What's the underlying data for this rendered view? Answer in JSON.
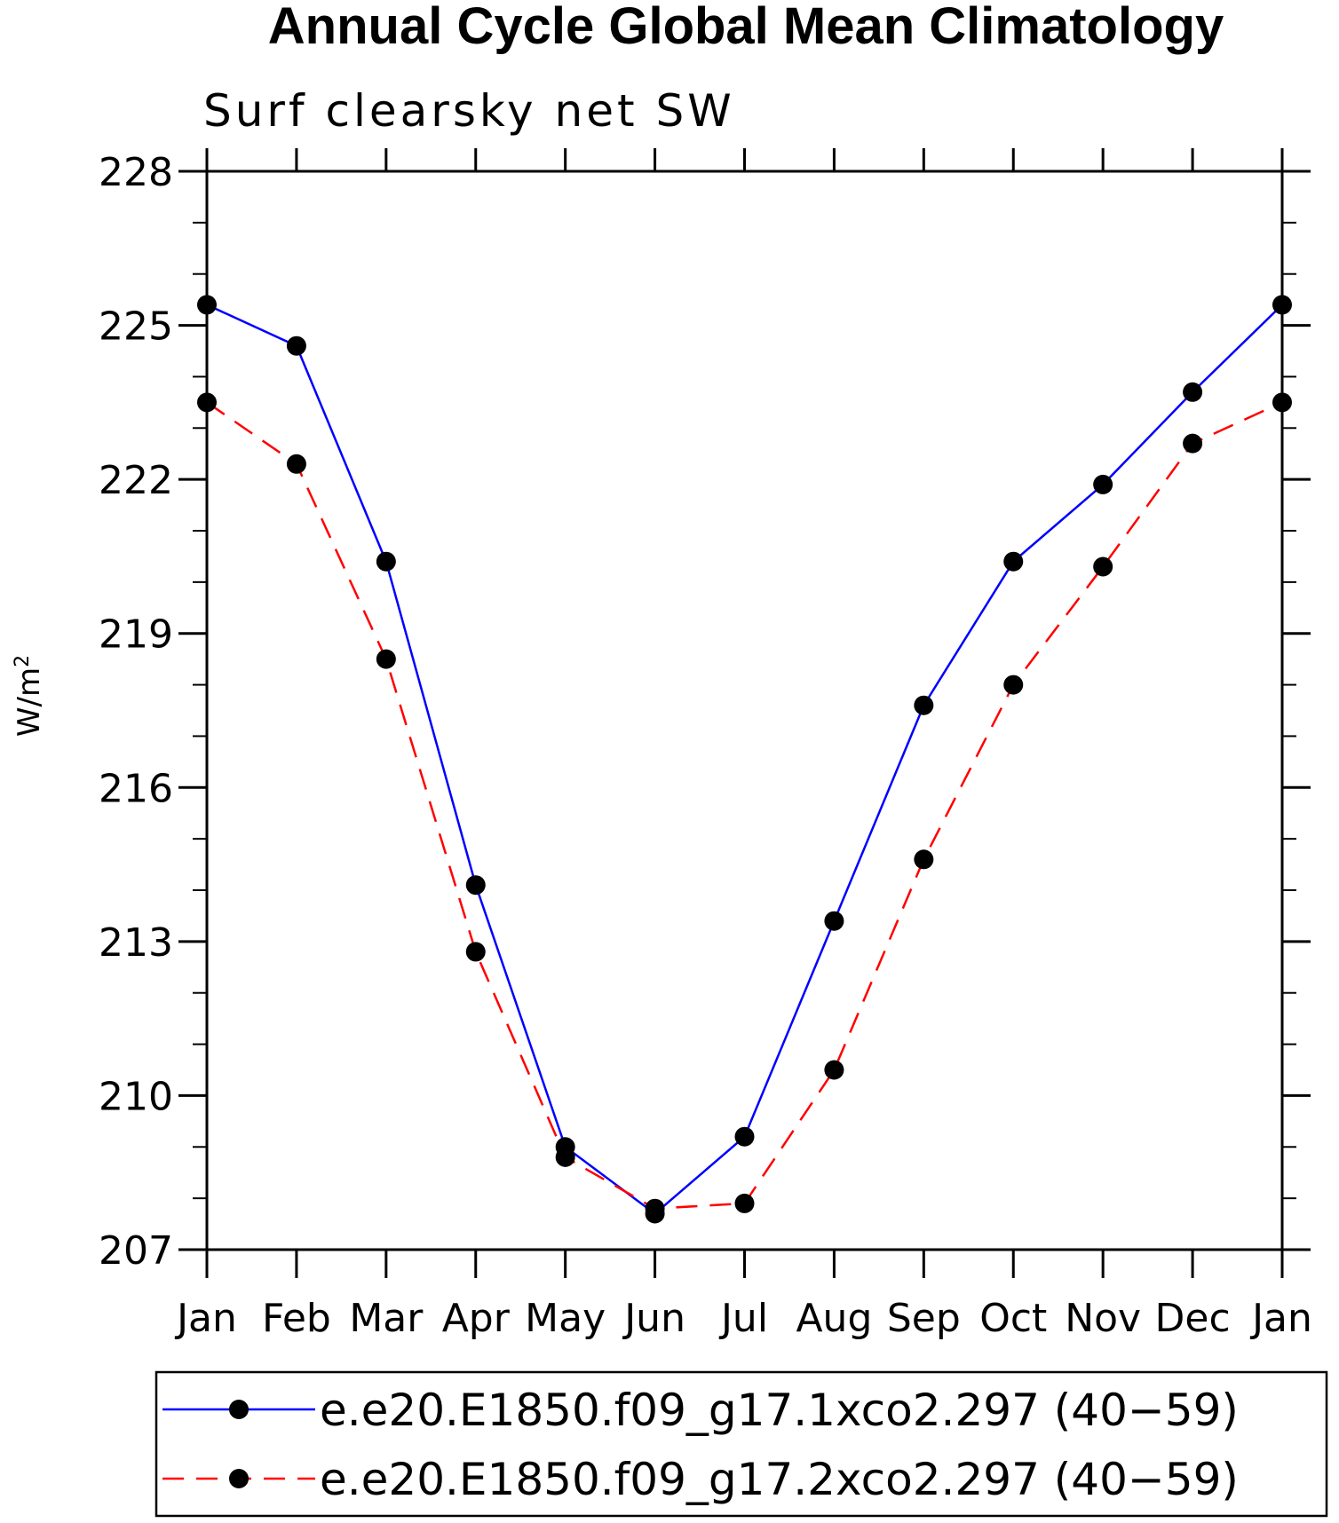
{
  "chart_data": {
    "type": "line",
    "title": "Annual Cycle Global Mean Climatology",
    "subtitle": "Surf clearsky net SW",
    "ylabel": "W/m",
    "ylabel_sup": "2",
    "ylim": [
      207,
      228
    ],
    "yticks": [
      207,
      210,
      213,
      216,
      219,
      222,
      225,
      228
    ],
    "categories": [
      "Jan",
      "Feb",
      "Mar",
      "Apr",
      "May",
      "Jun",
      "Jul",
      "Aug",
      "Sep",
      "Oct",
      "Nov",
      "Dec",
      "Jan"
    ],
    "grid": false,
    "legend_position": "bottom",
    "series": [
      {
        "name": "e.e20.E1850.f09_g17.1xco2.297 (40−59)",
        "color": "#0000ff",
        "line_style": "solid",
        "marker": "filled-circle",
        "values": [
          225.4,
          224.6,
          220.4,
          214.1,
          209.0,
          207.7,
          209.2,
          213.4,
          217.6,
          220.4,
          221.9,
          223.7,
          225.4
        ]
      },
      {
        "name": "e.e20.E1850.f09_g17.2xco2.297 (40−59)",
        "color": "#ff0000",
        "line_style": "dashed",
        "marker": "filled-circle",
        "values": [
          223.5,
          222.3,
          218.5,
          212.8,
          208.8,
          207.8,
          207.9,
          210.5,
          214.6,
          218.0,
          220.3,
          222.7,
          223.5
        ]
      }
    ]
  }
}
